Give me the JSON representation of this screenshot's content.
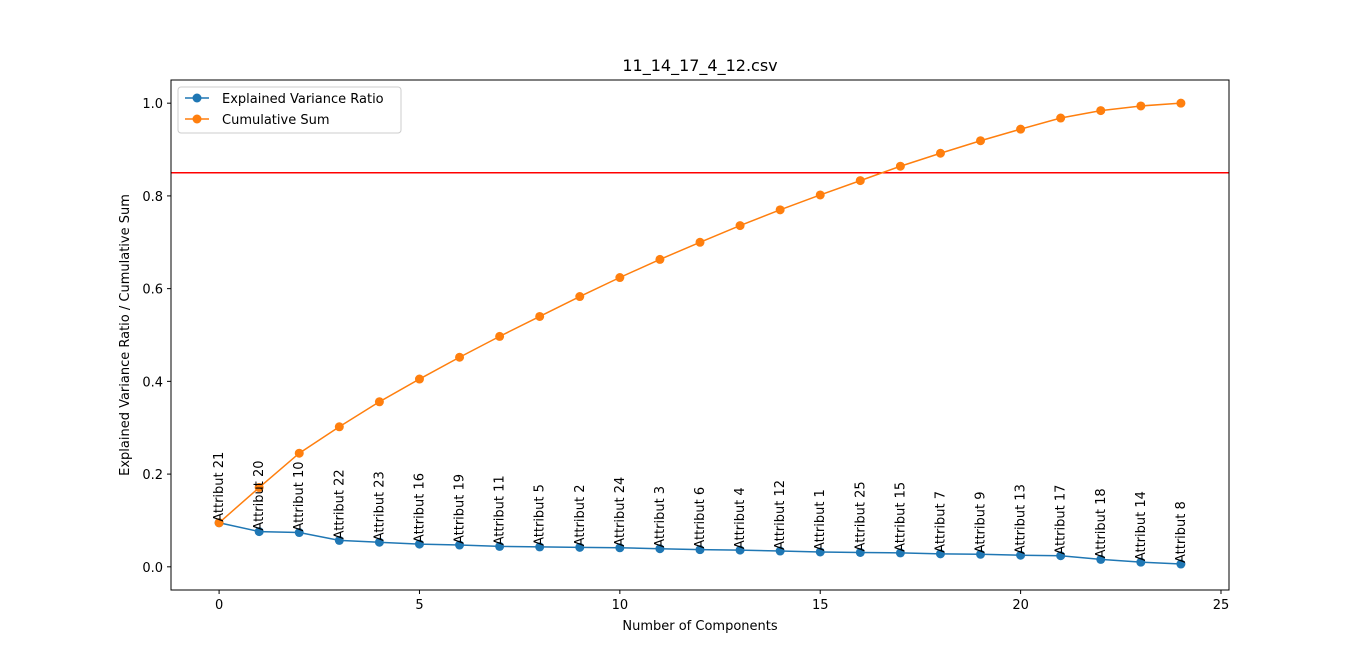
{
  "chart_data": {
    "type": "line",
    "title": "11_14_17_4_12.csv",
    "xlabel": "Number of Components",
    "ylabel": "Explained Variance Ratio / Cumulative Sum",
    "xlim": [
      -1.2,
      25.2
    ],
    "ylim": [
      -0.05,
      1.05
    ],
    "xticks": [
      0,
      5,
      10,
      15,
      20,
      25
    ],
    "yticks": [
      0.0,
      0.2,
      0.4,
      0.6,
      0.8,
      1.0
    ],
    "xtick_labels": [
      "0",
      "5",
      "10",
      "15",
      "20",
      "25"
    ],
    "ytick_labels": [
      "0.0",
      "0.2",
      "0.4",
      "0.6",
      "0.8",
      "1.0"
    ],
    "grid": false,
    "legend_position": "upper-left",
    "threshold_line": {
      "y": 0.85,
      "color": "#ff0000"
    },
    "x": [
      0,
      1,
      2,
      3,
      4,
      5,
      6,
      7,
      8,
      9,
      10,
      11,
      12,
      13,
      14,
      15,
      16,
      17,
      18,
      19,
      20,
      21,
      22,
      23,
      24
    ],
    "series": [
      {
        "name": "Explained Variance Ratio",
        "color": "#1f77b4",
        "values": [
          0.095,
          0.076,
          0.074,
          0.057,
          0.053,
          0.049,
          0.047,
          0.044,
          0.043,
          0.042,
          0.041,
          0.039,
          0.037,
          0.036,
          0.034,
          0.032,
          0.031,
          0.03,
          0.028,
          0.027,
          0.025,
          0.024,
          0.016,
          0.01,
          0.006
        ]
      },
      {
        "name": "Cumulative Sum",
        "color": "#ff7f0e",
        "values": [
          0.095,
          0.171,
          0.245,
          0.302,
          0.356,
          0.405,
          0.452,
          0.497,
          0.54,
          0.583,
          0.624,
          0.663,
          0.7,
          0.736,
          0.77,
          0.802,
          0.833,
          0.864,
          0.892,
          0.919,
          0.944,
          0.968,
          0.984,
          0.994,
          1.0
        ]
      }
    ],
    "point_labels": [
      "Attribut 21",
      "Attribut 20",
      "Attribut 10",
      "Attribut 22",
      "Attribut 23",
      "Attribut 16",
      "Attribut 19",
      "Attribut 11",
      "Attribut 5",
      "Attribut 2",
      "Attribut 24",
      "Attribut 3",
      "Attribut 6",
      "Attribut 4",
      "Attribut 12",
      "Attribut 1",
      "Attribut 25",
      "Attribut 15",
      "Attribut 7",
      "Attribut 9",
      "Attribut 13",
      "Attribut 17",
      "Attribut 18",
      "Attribut 14",
      "Attribut 8"
    ]
  }
}
